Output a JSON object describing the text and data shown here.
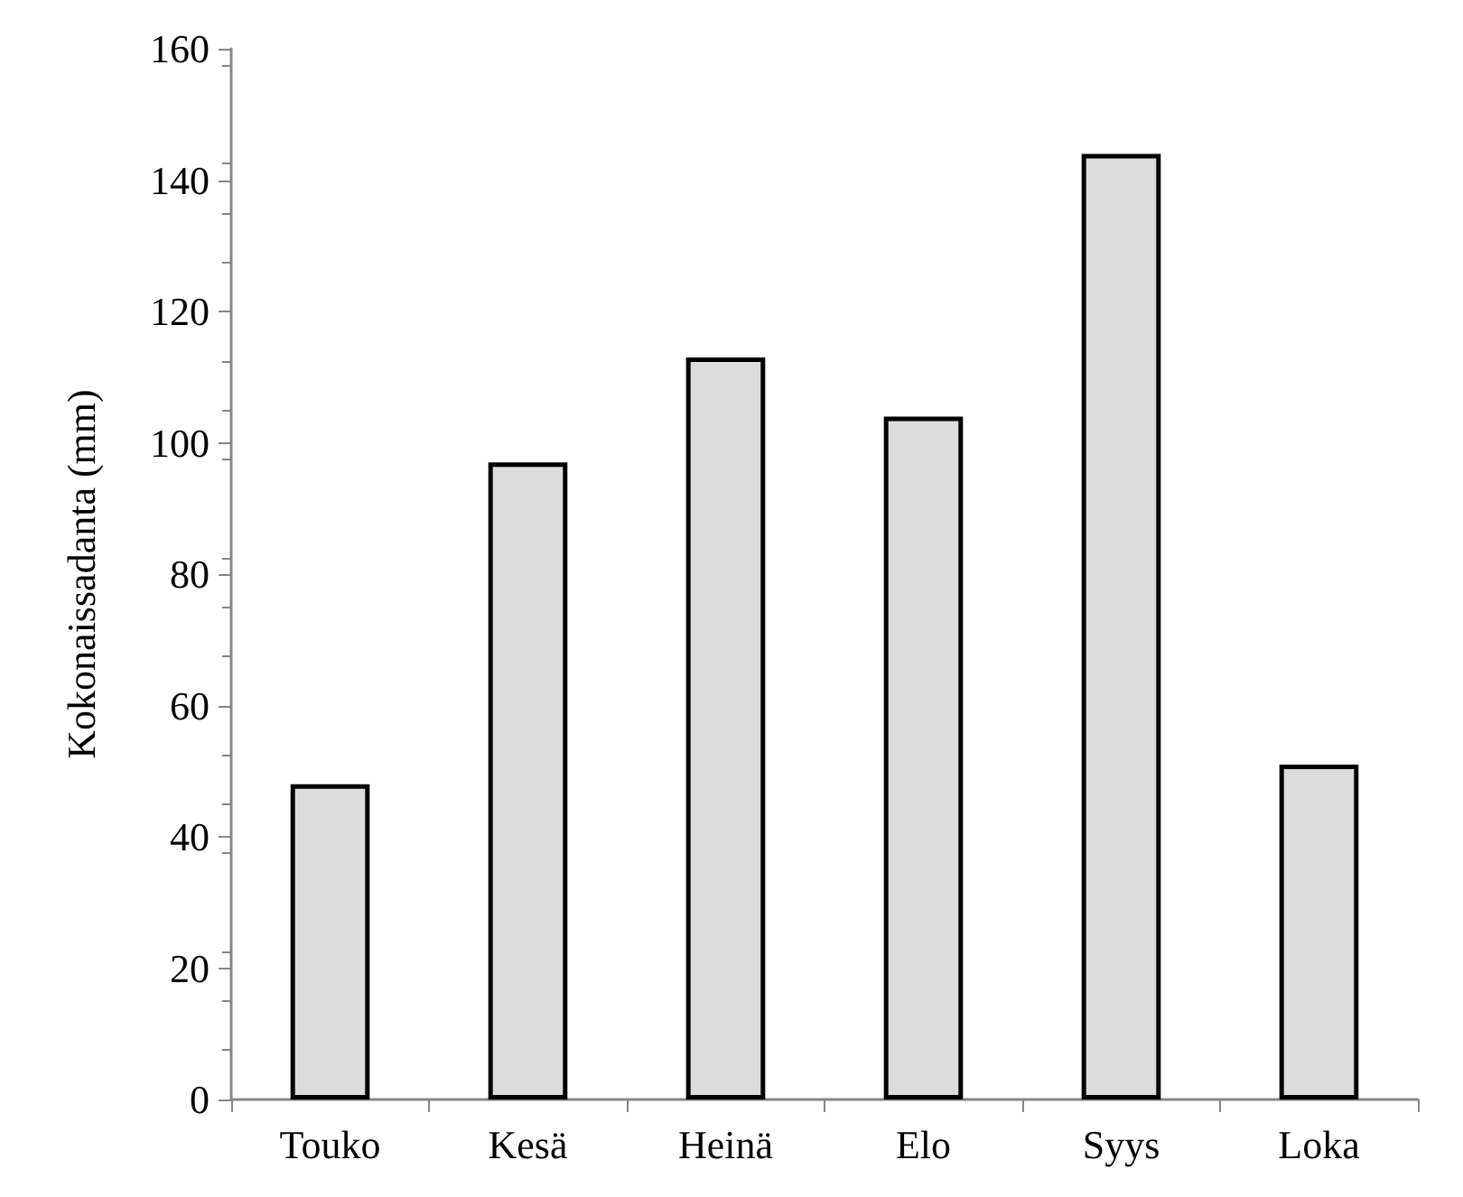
{
  "chart_data": {
    "type": "bar",
    "ylabel": "Kokonaissadanta (mm)",
    "categories": [
      "Touko",
      "Kesä",
      "Heinä",
      "Elo",
      "Syys",
      "Loka"
    ],
    "values": [
      48,
      97,
      113,
      104,
      144,
      51
    ],
    "color": "#dcdcdc",
    "ylim": [
      0,
      160
    ],
    "yticks": [
      0,
      20,
      40,
      60,
      80,
      100,
      120,
      140,
      160
    ],
    "grid": false
  }
}
